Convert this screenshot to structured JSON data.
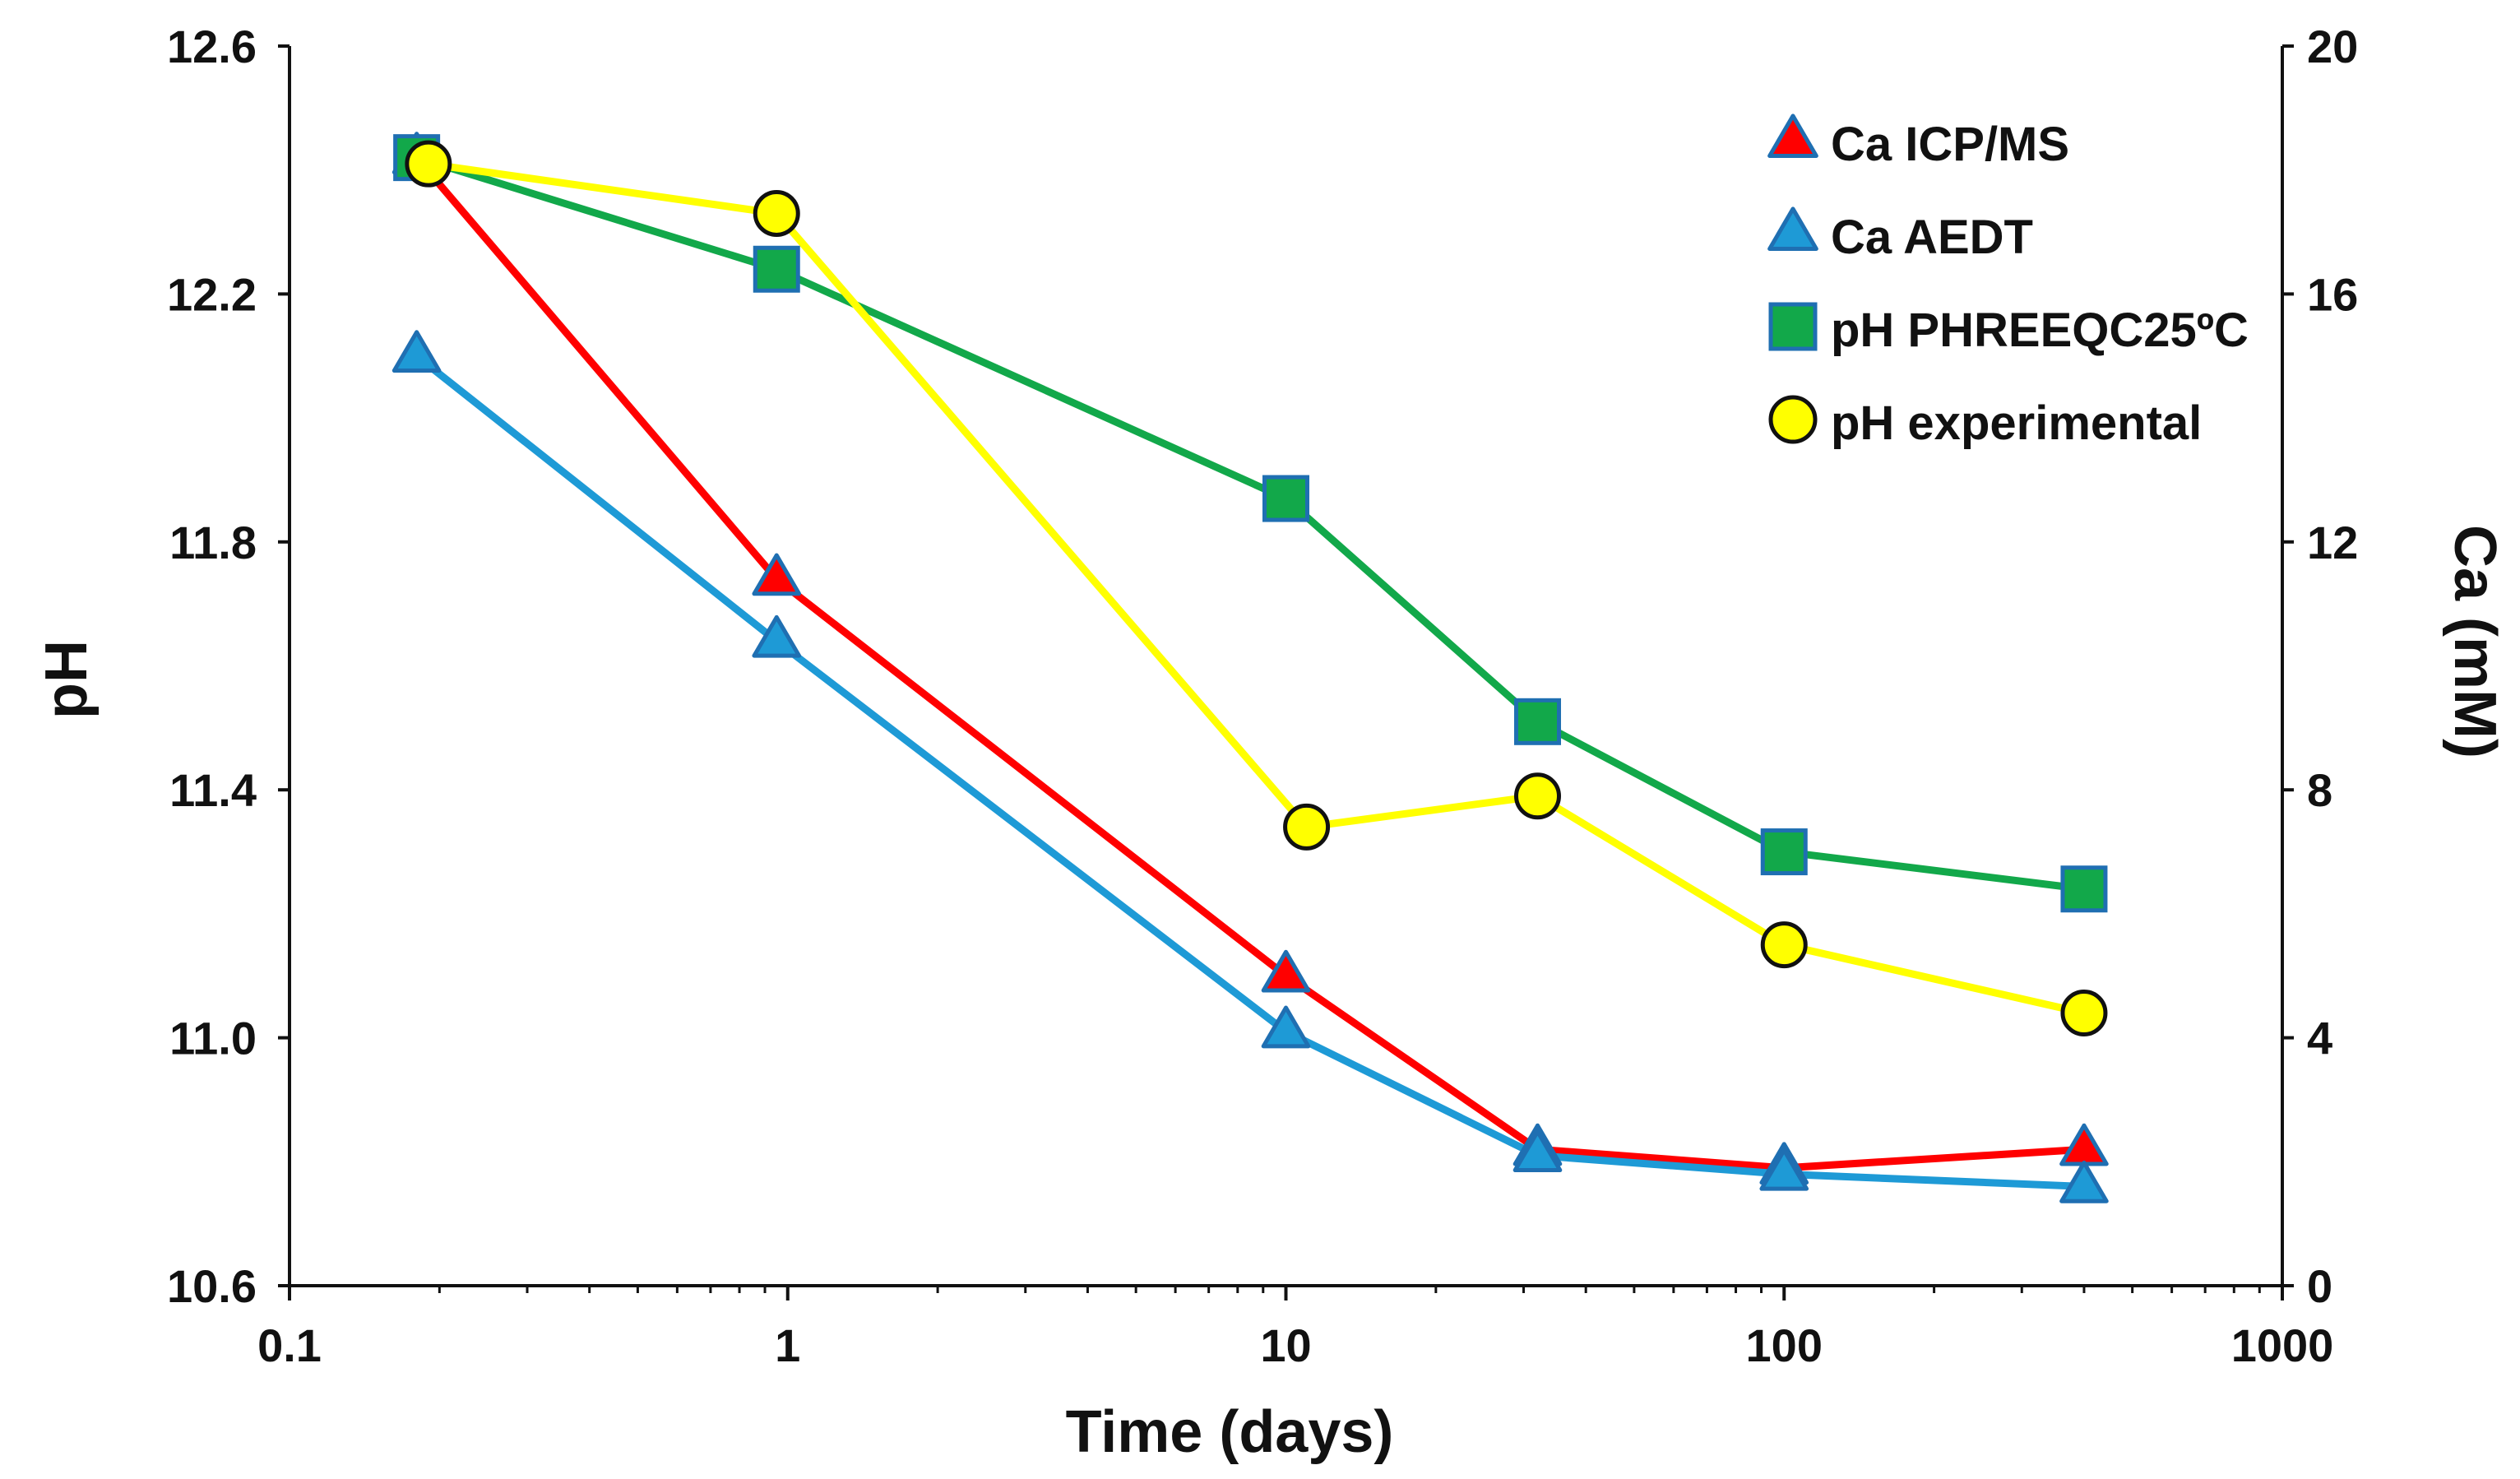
{
  "chart_data": {
    "type": "line",
    "title": "",
    "xlabel": "Time (days)",
    "ylabel": "pH",
    "y2label": "Ca (mM)",
    "xscale": "log",
    "xlim": [
      0.1,
      1000
    ],
    "ylim": [
      10.6,
      12.6
    ],
    "y2lim": [
      0,
      20
    ],
    "x_ticks": [
      0.1,
      1,
      10,
      100,
      1000
    ],
    "x_tick_labels": [
      "0.1",
      "1",
      "10",
      "100",
      "1000"
    ],
    "y_ticks": [
      10.6,
      11.0,
      11.4,
      11.8,
      12.2,
      12.6
    ],
    "y_tick_labels": [
      "10.6",
      "11.0",
      "11.4",
      "11.8",
      "12.2",
      "12.6"
    ],
    "y2_ticks": [
      0,
      4,
      8,
      12,
      16,
      20
    ],
    "y2_tick_labels": [
      "0",
      "4",
      "8",
      "12",
      "16",
      "20"
    ],
    "legend_position": "top-right",
    "series": [
      {
        "name": "Ca ICP/MS",
        "axis": "right",
        "marker": "triangle",
        "line_color": "#ff0000",
        "marker_fill": "#ff0000",
        "marker_stroke": "#1f6fb2",
        "x": [
          0.18,
          0.95,
          10,
          32,
          100,
          400
        ],
        "y": [
          18.2,
          11.4,
          5.0,
          2.2,
          1.9,
          2.2
        ]
      },
      {
        "name": "Ca AEDT",
        "axis": "right",
        "marker": "triangle",
        "line_color": "#1e9ad6",
        "marker_fill": "#1e9ad6",
        "marker_stroke": "#1f6fb2",
        "x": [
          0.18,
          0.95,
          10,
          32,
          100,
          400
        ],
        "y": [
          15.0,
          10.4,
          4.1,
          2.1,
          1.8,
          1.6
        ]
      },
      {
        "name": "pH PHREEQC25ºC",
        "axis": "left",
        "marker": "square",
        "line_color": "#12a84a",
        "marker_fill": "#12a84a",
        "marker_stroke": "#1f6fb2",
        "x": [
          0.18,
          0.95,
          10,
          32,
          100,
          400
        ],
        "y": [
          12.42,
          12.24,
          11.87,
          11.51,
          11.3,
          11.24
        ]
      },
      {
        "name": "pH experimental",
        "axis": "left",
        "marker": "circle",
        "line_color": "#ffff00",
        "marker_fill": "#ffff00",
        "marker_stroke": "#111111",
        "x": [
          0.19,
          0.95,
          11,
          32,
          100,
          400
        ],
        "y": [
          12.41,
          12.33,
          11.34,
          11.39,
          11.15,
          11.04
        ]
      }
    ]
  }
}
